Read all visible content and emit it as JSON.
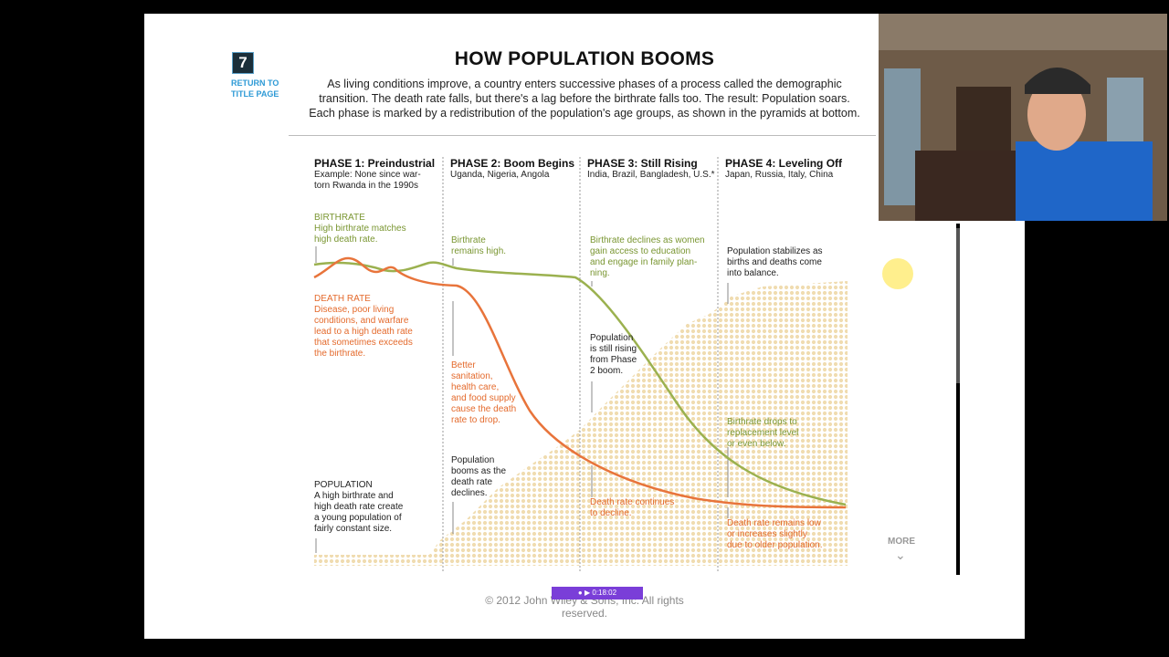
{
  "sidebar": {
    "chapter_number": "7",
    "return_link": [
      "RETURN TO",
      "TITLE PAGE"
    ]
  },
  "header": {
    "title": "HOW POPULATION BOOMS",
    "intro_lines": [
      "As living conditions improve, a country enters successive phases of a process called the demographic",
      "transition. The death rate falls, but there's a lag before the birthrate falls too. The result: Population soars.",
      "Each phase is marked by a redistribution of the population's age groups, as shown in the pyramids at bottom."
    ]
  },
  "phases": [
    {
      "title": "PHASE 1: Preindustrial",
      "subtitle": [
        "Example: None since war-",
        "torn Rwanda in the 1990s"
      ]
    },
    {
      "title": "PHASE 2: Boom Begins",
      "subtitle": [
        "Uganda, Nigeria, Angola"
      ]
    },
    {
      "title": "PHASE 3: Still Rising",
      "subtitle": [
        "India, Brazil, Bangladesh, U.S.*"
      ]
    },
    {
      "title": "PHASE 4: Leveling Off",
      "subtitle": [
        "Japan, Russia, Italy, China"
      ]
    }
  ],
  "annotations": {
    "birthrate_label": "BIRTHRATE",
    "birthrate_p1": [
      "High birthrate matches",
      "high death rate."
    ],
    "deathrate_label": "DEATH RATE",
    "deathrate_p1": [
      "Disease, poor living",
      "conditions, and warfare",
      "lead to a high death rate",
      "that sometimes exceeds",
      "the birthrate."
    ],
    "population_label": "POPULATION",
    "population_p1": [
      "A high birthrate and",
      "high death rate create",
      "a young population of",
      "fairly constant size."
    ],
    "birthrate_p2": [
      "Birthrate",
      "remains high."
    ],
    "deathrate_p2": [
      "Better",
      "sanitation,",
      "health care,",
      "and food supply",
      "cause the death",
      "rate to drop."
    ],
    "population_p2": [
      "Population",
      "booms as the",
      "death rate",
      "declines."
    ],
    "birthrate_p3": [
      "Birthrate declines as women",
      "gain access to education",
      "and engage in family plan-",
      "ning."
    ],
    "population_p3": [
      "Population",
      "is still rising",
      "from Phase",
      "2 boom."
    ],
    "deathrate_p3": [
      "Death rate continues",
      "to decline."
    ],
    "population_p4": [
      "Population stabilizes as",
      "births and deaths come",
      "into balance."
    ],
    "birthrate_p4": [
      "Birthrate drops to",
      "replacement level",
      "or even below."
    ],
    "deathrate_p4": [
      "Death rate remains low",
      "or increases slightly",
      "due to older population."
    ]
  },
  "colors": {
    "birthrate": "#9bb14f",
    "deathrate": "#e8743b",
    "population": "#f0dcb0",
    "link": "#2e9ad6"
  },
  "more": {
    "label": "MORE"
  },
  "footer": {
    "copyright": [
      "© 2012 John Wiley & Sons, Inc. All rights",
      "reserved."
    ]
  },
  "recorder": {
    "time": "0:18:02"
  }
}
